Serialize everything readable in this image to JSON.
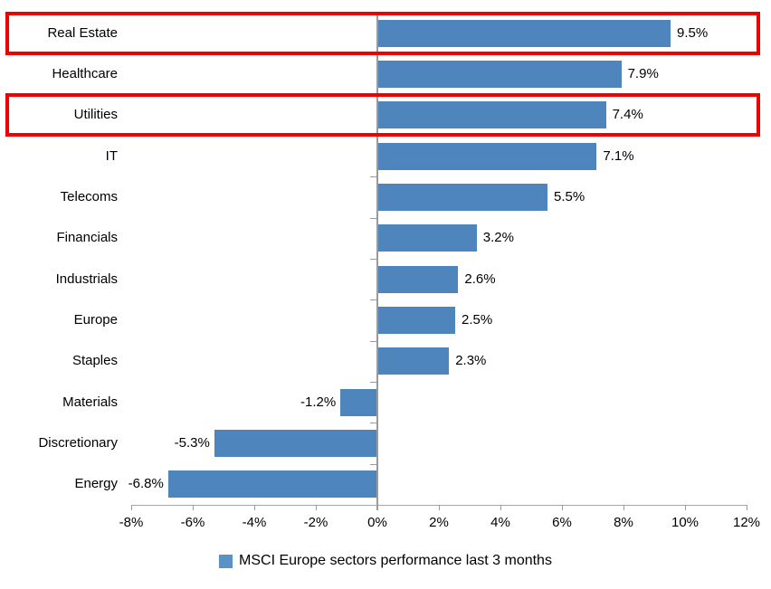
{
  "chart_data": {
    "type": "bar",
    "orientation": "horizontal",
    "title": "",
    "categories": [
      "Real Estate",
      "Healthcare",
      "Utilities",
      "IT",
      "Telecoms",
      "Financials",
      "Industrials",
      "Europe",
      "Staples",
      "Materials",
      "Discretionary",
      "Energy"
    ],
    "values": [
      9.5,
      7.9,
      7.4,
      7.1,
      5.5,
      3.2,
      2.6,
      2.5,
      2.3,
      -1.2,
      -5.3,
      -6.8
    ],
    "value_labels": [
      "9.5%",
      "7.9%",
      "7.4%",
      "7.1%",
      "5.5%",
      "3.2%",
      "2.6%",
      "2.5%",
      "2.3%",
      "-1.2%",
      "-5.3%",
      "-6.8%"
    ],
    "x_tick_values": [
      -8,
      -6,
      -4,
      -2,
      0,
      2,
      4,
      6,
      8,
      10,
      12
    ],
    "x_tick_labels": [
      "-8%",
      "-6%",
      "-4%",
      "-2%",
      "0%",
      "2%",
      "4%",
      "6%",
      "8%",
      "10%",
      "12%"
    ],
    "xlim": [
      -8,
      12
    ],
    "grid": false,
    "legend": "MSCI Europe sectors performance last 3 months",
    "legend_position": "bottom",
    "bar_color": "#4E85BD",
    "legend_marker_color": "#5B92C6",
    "highlight_color": "#EC0000",
    "highlighted_categories": [
      "Real Estate",
      "Utilities"
    ],
    "highlighted_rows": [
      0,
      2
    ]
  }
}
